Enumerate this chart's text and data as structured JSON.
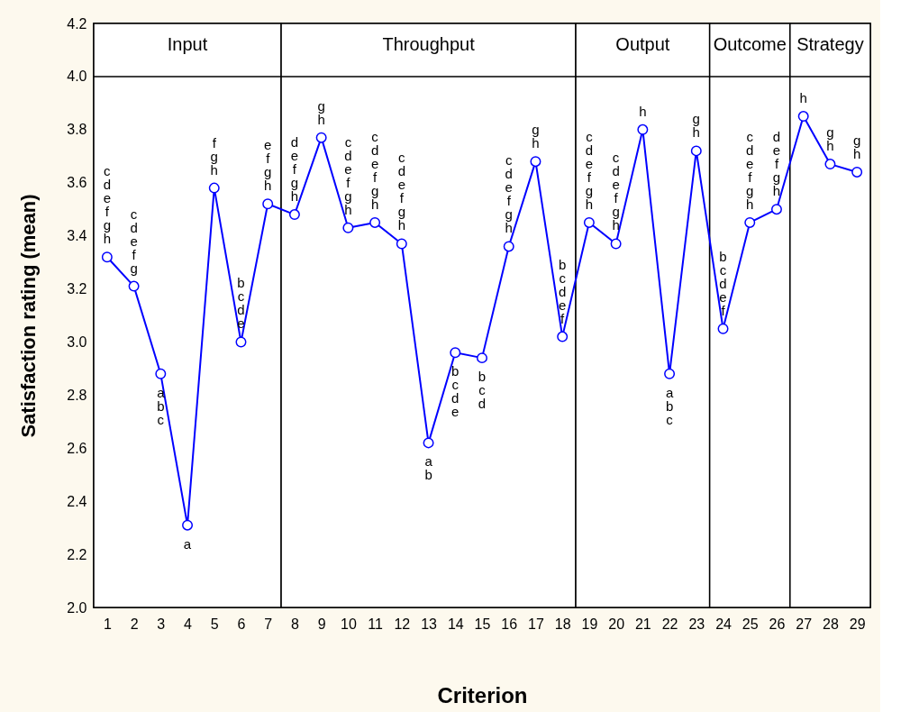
{
  "chart_data": {
    "type": "line",
    "xlabel": "Criterion",
    "ylabel": "Satisfaction rating (mean)",
    "x": [
      1,
      2,
      3,
      4,
      5,
      6,
      7,
      8,
      9,
      10,
      11,
      12,
      13,
      14,
      15,
      16,
      17,
      18,
      19,
      20,
      21,
      22,
      23,
      24,
      25,
      26,
      27,
      28,
      29
    ],
    "series": [
      {
        "color": "#0000ff",
        "values": [
          3.32,
          3.21,
          2.88,
          2.31,
          3.58,
          3.0,
          3.52,
          3.48,
          3.77,
          3.43,
          3.45,
          3.37,
          2.62,
          2.96,
          2.94,
          3.36,
          3.68,
          3.02,
          3.45,
          3.37,
          3.8,
          2.88,
          3.72,
          3.05,
          3.45,
          3.5,
          3.85,
          3.67,
          3.64
        ],
        "value_labels": [
          "cdefgh",
          "cdefg",
          "abc",
          "a",
          "fgh",
          "bcde",
          "efgh",
          "defgh",
          "gh",
          "cdefgh",
          "cdefgh",
          "cdefgh",
          "ab",
          "bcde",
          "bcd",
          "cdefgh",
          "gh",
          "bcdef",
          "cdefgh",
          "cdefgh",
          "h",
          "abc",
          "gh",
          "bcdef",
          "cdefgh",
          "defgh",
          "h",
          "gh",
          "gh"
        ]
      }
    ],
    "xlim": [
      0.5,
      29.5
    ],
    "xticks": [
      1,
      2,
      3,
      4,
      5,
      6,
      7,
      8,
      9,
      10,
      11,
      12,
      13,
      14,
      15,
      16,
      17,
      18,
      19,
      20,
      21,
      22,
      23,
      24,
      25,
      26,
      27,
      28,
      29
    ],
    "ylim": [
      2.0,
      4.2
    ],
    "yticks": [
      {
        "value": 2,
        "label": "2.0"
      },
      {
        "value": 2.2,
        "label": "2.2"
      },
      {
        "value": 2.4,
        "label": "2.4"
      },
      {
        "value": 2.6,
        "label": "2.6"
      },
      {
        "value": 2.8,
        "label": "2.8"
      },
      {
        "value": 3,
        "label": "3.0"
      },
      {
        "value": 3.2,
        "label": "3.2"
      },
      {
        "value": 3.4,
        "label": "3.4"
      },
      {
        "value": 3.6,
        "label": "3.6"
      },
      {
        "value": 3.8,
        "label": "3.8"
      },
      {
        "value": 4,
        "label": "4.0"
      },
      {
        "value": 4.2,
        "label": "4.2"
      }
    ],
    "bands": [
      {
        "axis": "x",
        "from": 0.5,
        "to": 7.5,
        "label": "Input",
        "color": "#ffffff"
      },
      {
        "axis": "x",
        "from": 7.5,
        "to": 18.5,
        "label": "Throughput",
        "color": "#ffffff"
      },
      {
        "axis": "x",
        "from": 18.5,
        "to": 23.5,
        "label": "Output",
        "color": "#ffffff"
      },
      {
        "axis": "x",
        "from": 23.5,
        "to": 26.5,
        "label": "Outcome",
        "color": "#ffffff"
      },
      {
        "axis": "x",
        "from": 26.5,
        "to": 29.5,
        "label": "Strategy",
        "color": "#ffffff"
      }
    ],
    "ref_lines": [
      {
        "axis": "y",
        "value": 4.0
      }
    ],
    "marker": "circle",
    "line_style": "solid",
    "grid": false
  }
}
